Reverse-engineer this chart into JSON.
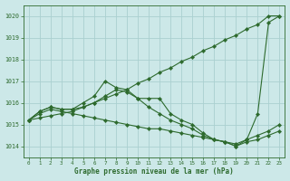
{
  "title": "Graphe pression niveau de la mer (hPa)",
  "xlim": [
    -0.5,
    23.5
  ],
  "ylim": [
    1013.5,
    1020.5
  ],
  "yticks": [
    1014,
    1015,
    1016,
    1017,
    1018,
    1019,
    1020
  ],
  "xticks": [
    0,
    1,
    2,
    3,
    4,
    5,
    6,
    7,
    8,
    9,
    10,
    11,
    12,
    13,
    14,
    15,
    16,
    17,
    18,
    19,
    20,
    21,
    22,
    23
  ],
  "bg_color": "#cce8e8",
  "grid_color": "#aad0d0",
  "line_color": "#2d6a2d",
  "series": [
    {
      "x": [
        0,
        1,
        2,
        3,
        4,
        5,
        6,
        7,
        8,
        9,
        10,
        11,
        12,
        13,
        14,
        15,
        16,
        17,
        18,
        19,
        20,
        21,
        22,
        23
      ],
      "y": [
        1015.2,
        1015.3,
        1015.4,
        1015.5,
        1015.6,
        1015.8,
        1016.0,
        1016.2,
        1016.4,
        1016.6,
        1016.9,
        1017.1,
        1017.4,
        1017.6,
        1017.9,
        1018.1,
        1018.4,
        1018.6,
        1018.9,
        1019.1,
        1019.4,
        1019.6,
        1020.0,
        1020.0
      ]
    },
    {
      "x": [
        0,
        1,
        2,
        3,
        4,
        5,
        6,
        7,
        8,
        9,
        10,
        11,
        12,
        13,
        14,
        15,
        16,
        17,
        18,
        19,
        20,
        21,
        22,
        23
      ],
      "y": [
        1015.2,
        1015.6,
        1015.8,
        1015.7,
        1015.7,
        1016.0,
        1016.3,
        1017.0,
        1016.7,
        1016.6,
        1016.2,
        1016.2,
        1016.2,
        1015.5,
        1015.2,
        1015.0,
        1014.6,
        1014.3,
        1014.2,
        1014.0,
        1014.3,
        1015.5,
        1019.7,
        1020.0
      ]
    },
    {
      "x": [
        0,
        1,
        2,
        3,
        4,
        5,
        6,
        7,
        8,
        9,
        10,
        11,
        12,
        13,
        14,
        15,
        16,
        17,
        18,
        19,
        20,
        21,
        22,
        23
      ],
      "y": [
        1015.2,
        1015.6,
        1015.8,
        1015.7,
        1015.7,
        1015.8,
        1016.0,
        1016.3,
        1016.6,
        1016.5,
        1016.2,
        1015.8,
        1015.5,
        1015.2,
        1015.0,
        1014.8,
        1014.5,
        1014.3,
        1014.2,
        1014.1,
        1014.3,
        1014.5,
        1014.7,
        1015.0
      ]
    },
    {
      "x": [
        0,
        1,
        2,
        3,
        4,
        5,
        6,
        7,
        8,
        9,
        10,
        11,
        12,
        13,
        14,
        15,
        16,
        17,
        18,
        19,
        20,
        21,
        22,
        23
      ],
      "y": [
        1015.2,
        1015.5,
        1015.7,
        1015.6,
        1015.5,
        1015.4,
        1015.3,
        1015.2,
        1015.1,
        1015.0,
        1014.9,
        1014.8,
        1014.8,
        1014.7,
        1014.6,
        1014.5,
        1014.4,
        1014.3,
        1014.2,
        1014.0,
        1014.2,
        1014.3,
        1014.5,
        1014.7
      ]
    }
  ]
}
